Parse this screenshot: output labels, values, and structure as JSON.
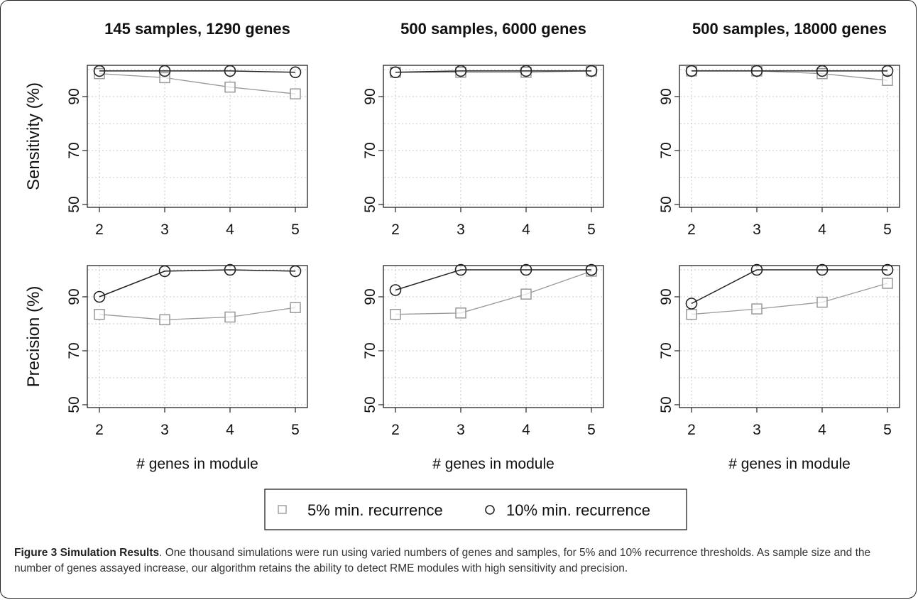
{
  "chart_data": [
    {
      "type": "line",
      "title": "145 samples, 1290 genes",
      "xlabel": "",
      "ylabel": "Sensitivity (%)",
      "x": [
        2,
        3,
        4,
        5
      ],
      "ylim": [
        50,
        100
      ],
      "yticks": [
        50,
        70,
        90
      ],
      "series": [
        {
          "name": "5% min. recurrence",
          "marker": "square",
          "color": "#999999",
          "values": [
            98.5,
            97,
            93.5,
            91
          ]
        },
        {
          "name": "10% min. recurrence",
          "marker": "circle",
          "color": "#222222",
          "values": [
            99.5,
            99.5,
            99.5,
            99
          ]
        }
      ]
    },
    {
      "type": "line",
      "title": "500 samples, 6000 genes",
      "xlabel": "",
      "ylabel": "",
      "x": [
        2,
        3,
        4,
        5
      ],
      "ylim": [
        50,
        100
      ],
      "yticks": [
        50,
        70,
        90
      ],
      "series": [
        {
          "name": "5% min. recurrence",
          "marker": "square",
          "color": "#999999",
          "values": [
            99,
            99,
            99,
            99.5
          ]
        },
        {
          "name": "10% min. recurrence",
          "marker": "circle",
          "color": "#222222",
          "values": [
            99,
            99.5,
            99.5,
            99.5
          ]
        }
      ]
    },
    {
      "type": "line",
      "title": "500 samples, 18000 genes",
      "xlabel": "",
      "ylabel": "",
      "x": [
        2,
        3,
        4,
        5
      ],
      "ylim": [
        50,
        100
      ],
      "yticks": [
        50,
        70,
        90
      ],
      "series": [
        {
          "name": "5% min. recurrence",
          "marker": "square",
          "color": "#999999",
          "values": [
            99.5,
            99.5,
            98.5,
            96
          ]
        },
        {
          "name": "10% min. recurrence",
          "marker": "circle",
          "color": "#222222",
          "values": [
            99.5,
            99.5,
            99.5,
            99.5
          ]
        }
      ]
    },
    {
      "type": "line",
      "title": "",
      "xlabel": "# genes in module",
      "ylabel": "Precision (%)",
      "x": [
        2,
        3,
        4,
        5
      ],
      "ylim": [
        50,
        100
      ],
      "yticks": [
        50,
        70,
        90
      ],
      "series": [
        {
          "name": "5% min. recurrence",
          "marker": "square",
          "color": "#999999",
          "values": [
            83.5,
            81.5,
            82.5,
            86
          ]
        },
        {
          "name": "10% min. recurrence",
          "marker": "circle",
          "color": "#222222",
          "values": [
            90,
            99.5,
            100,
            99.5
          ]
        }
      ]
    },
    {
      "type": "line",
      "title": "",
      "xlabel": "# genes in module",
      "ylabel": "",
      "x": [
        2,
        3,
        4,
        5
      ],
      "ylim": [
        50,
        100
      ],
      "yticks": [
        50,
        70,
        90
      ],
      "series": [
        {
          "name": "5% min. recurrence",
          "marker": "square",
          "color": "#999999",
          "values": [
            83.5,
            84,
            91,
            99.5
          ]
        },
        {
          "name": "10% min. recurrence",
          "marker": "circle",
          "color": "#222222",
          "values": [
            92.5,
            100,
            100,
            100
          ]
        }
      ]
    },
    {
      "type": "line",
      "title": "",
      "xlabel": "# genes in module",
      "ylabel": "",
      "x": [
        2,
        3,
        4,
        5
      ],
      "ylim": [
        50,
        100
      ],
      "yticks": [
        50,
        70,
        90
      ],
      "series": [
        {
          "name": "5% min. recurrence",
          "marker": "square",
          "color": "#999999",
          "values": [
            83.5,
            85.5,
            88,
            95
          ]
        },
        {
          "name": "10% min. recurrence",
          "marker": "circle",
          "color": "#222222",
          "values": [
            87.5,
            100,
            100,
            100
          ]
        }
      ]
    }
  ],
  "legend": {
    "placement": "bottom-center",
    "items": [
      {
        "label": "5% min. recurrence",
        "marker": "square",
        "color": "#999999"
      },
      {
        "label": "10% min. recurrence",
        "marker": "circle",
        "color": "#222222"
      }
    ]
  },
  "caption": {
    "label": "Figure 3 Simulation Results",
    "text": ". One thousand simulations were run using varied numbers of genes and samples, for 5% and 10% recurrence thresholds. As sample size and the number of genes assayed increase, our algorithm retains the ability to detect RME modules with high sensitivity and precision."
  },
  "grid": true
}
